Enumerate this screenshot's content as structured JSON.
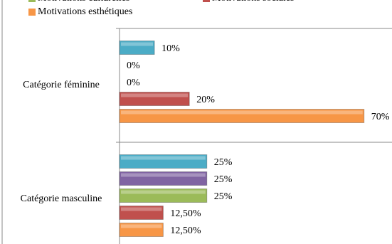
{
  "chart_data": {
    "type": "bar",
    "orientation": "horizontal",
    "categories": [
      "Catégorie féminine",
      "Catégorie masculine"
    ],
    "series": [
      {
        "color": "#4bacc6",
        "values": [
          10,
          25
        ],
        "value_labels": [
          "10%",
          "25%"
        ]
      },
      {
        "color": "#8064a2",
        "values": [
          0,
          25
        ],
        "value_labels": [
          "0%",
          "25%"
        ]
      },
      {
        "name": "Motivations culturelles",
        "color": "#9bbb59",
        "values": [
          0,
          25
        ],
        "value_labels": [
          "0%",
          "25%"
        ]
      },
      {
        "name": "Motivations sociales",
        "color": "#c0504d",
        "values": [
          20,
          12.5
        ],
        "value_labels": [
          "20%",
          "12,50%"
        ]
      },
      {
        "name": "Motivations esthétiques",
        "color": "#f79646",
        "values": [
          70,
          12.5
        ],
        "value_labels": [
          "70%",
          "12,50%"
        ]
      }
    ],
    "xlim": [
      0,
      78
    ]
  }
}
